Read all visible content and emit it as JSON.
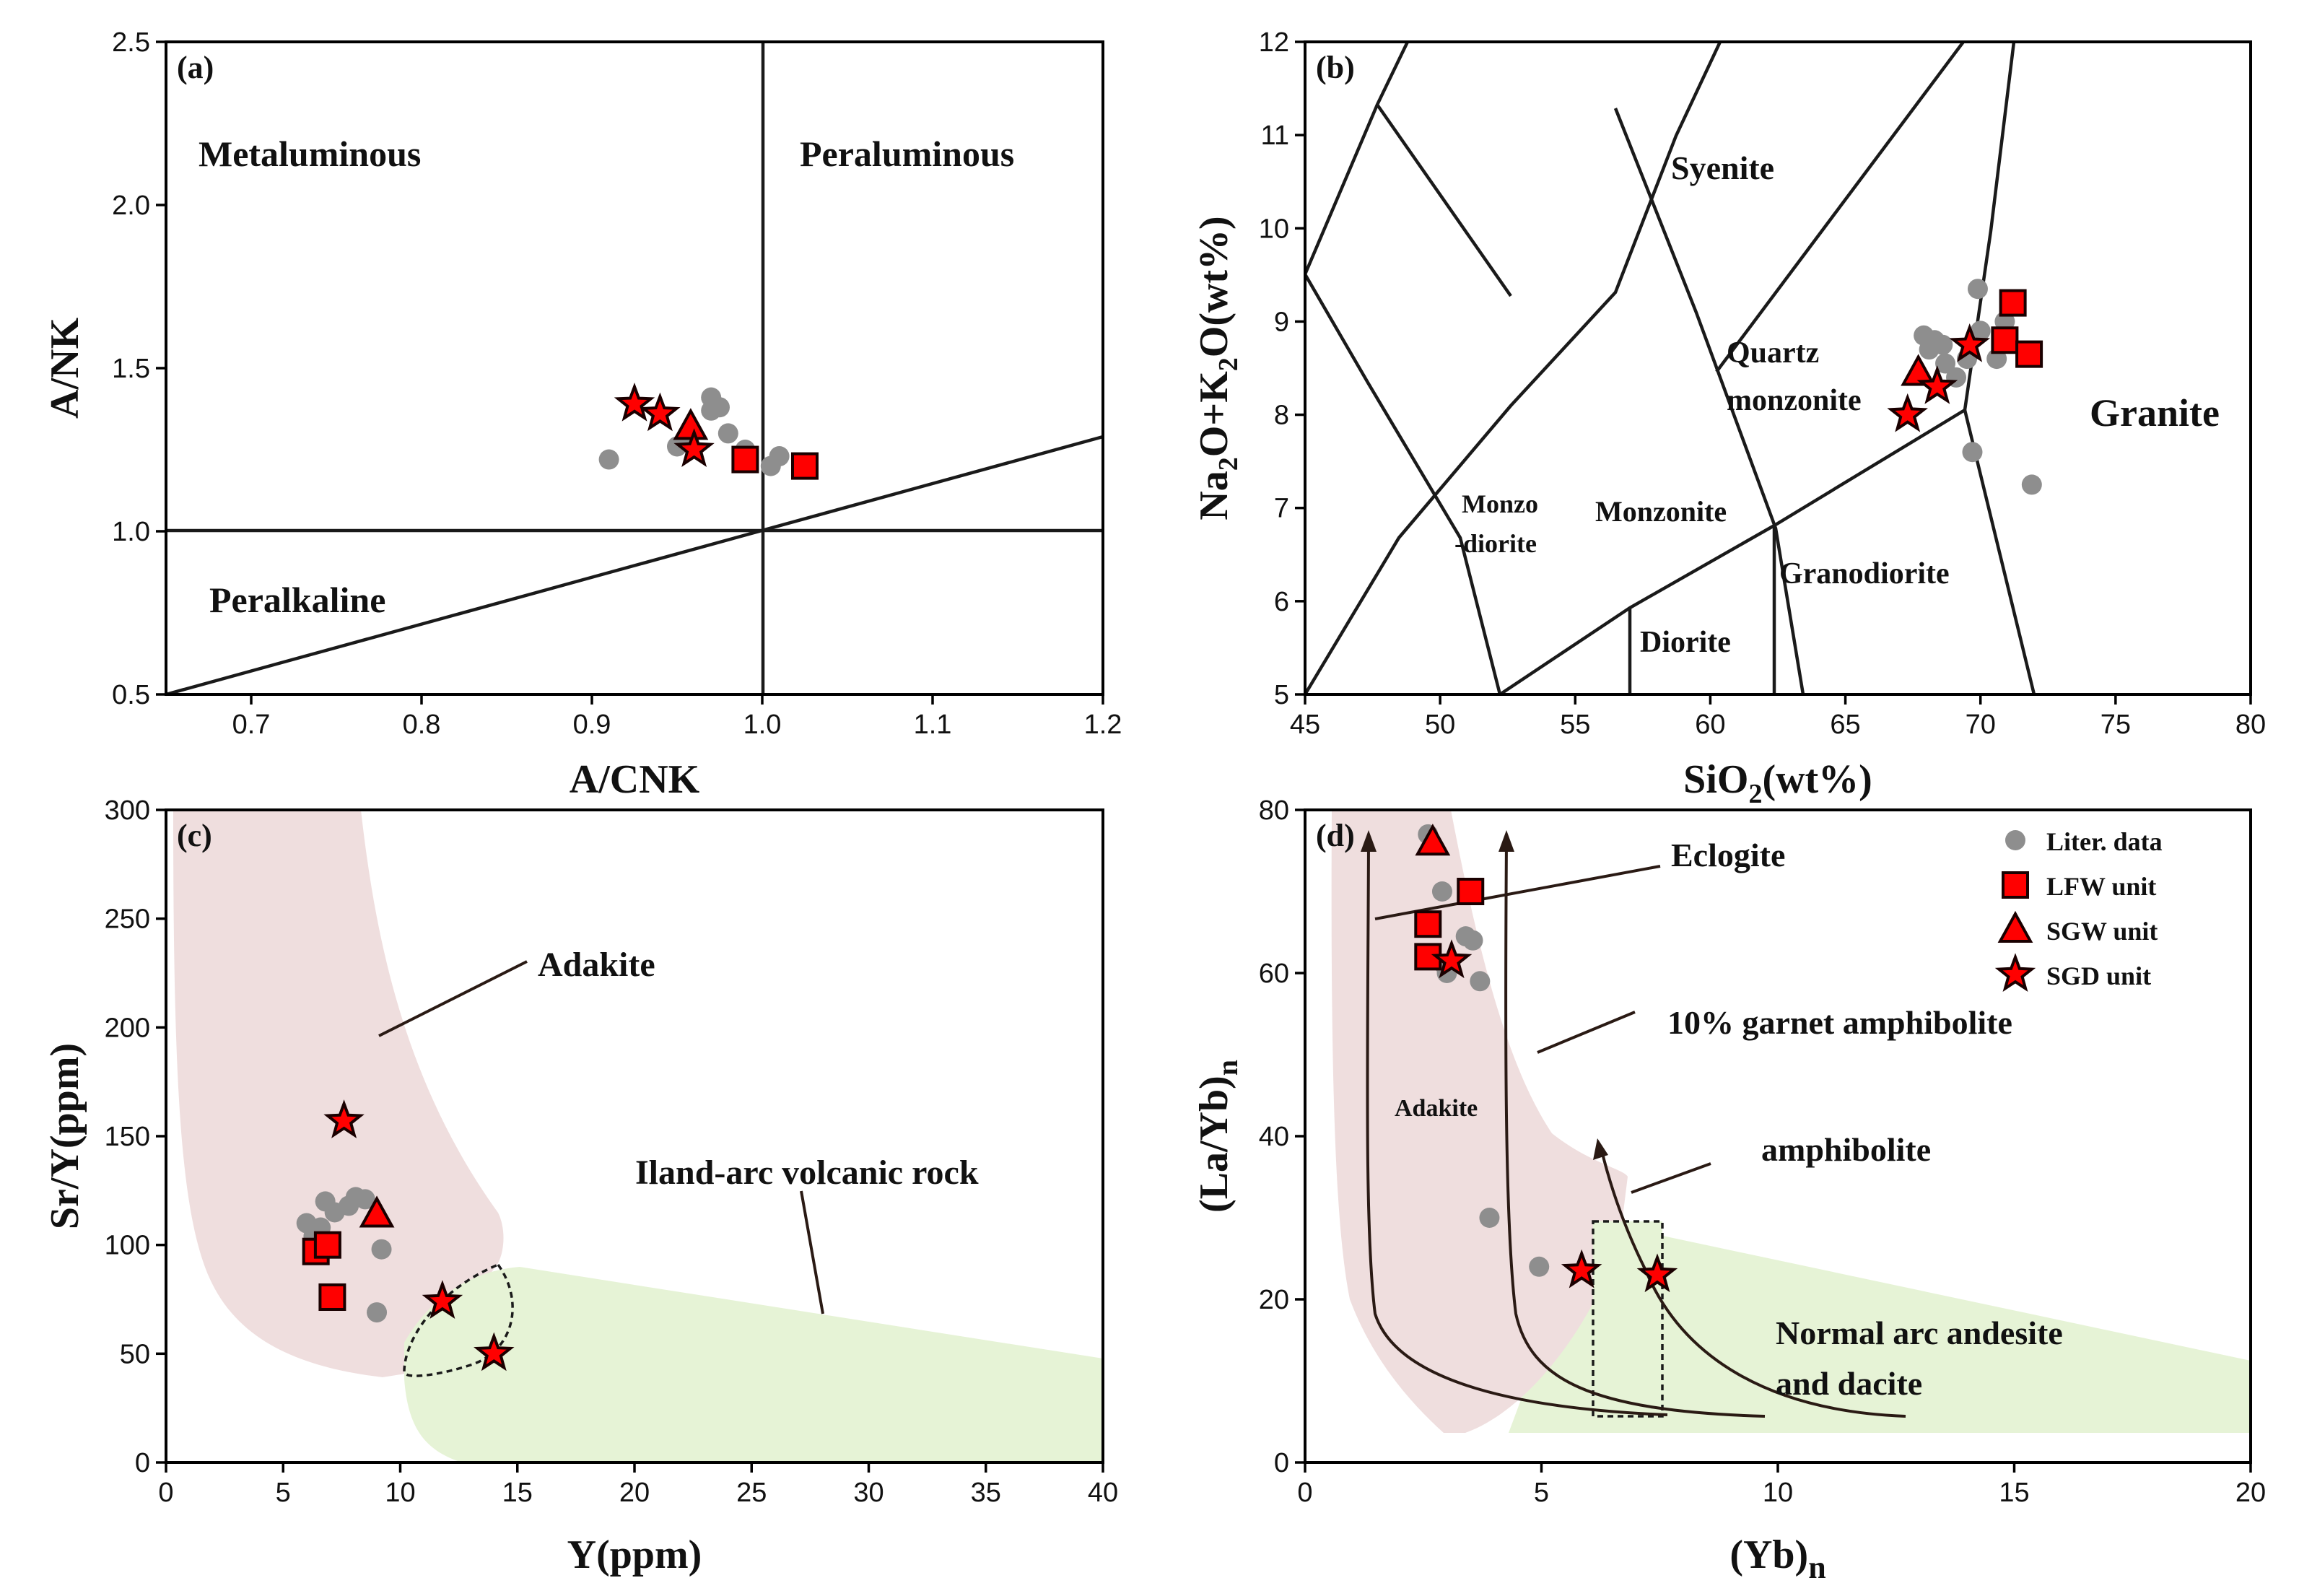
{
  "colors": {
    "adakite_field": "#efdede",
    "arc_field": "#e6f3d6",
    "symbol_fill": "#ff0000",
    "literature": "#8e8e8e"
  },
  "chart_data": [
    {
      "panel": "(a)",
      "type": "scatter",
      "xlabel": "A/CNK",
      "ylabel": "A/NK",
      "xlim": [
        0.65,
        1.2
      ],
      "ylim": [
        0.5,
        2.5
      ],
      "xticks": [
        "0.7",
        "0.8",
        "0.9",
        "1.0",
        "1.1",
        "1.2"
      ],
      "yticks": [
        "0.5",
        "1.0",
        "1.5",
        "2.0",
        "2.5"
      ],
      "regions": [
        "Metaluminous",
        "Peraluminous",
        "Peralkaline"
      ],
      "series": [
        {
          "name": "Liter. data",
          "x": [
            0.91,
            0.95,
            0.955,
            0.97,
            0.97,
            0.975,
            0.98,
            0.99,
            1.005,
            1.01
          ],
          "y": [
            1.22,
            1.26,
            1.28,
            1.37,
            1.41,
            1.38,
            1.3,
            1.25,
            1.2,
            1.23
          ]
        },
        {
          "name": "LFW unit",
          "x": [
            0.99,
            1.025
          ],
          "y": [
            1.22,
            1.2
          ]
        },
        {
          "name": "SGW unit",
          "x": [
            0.958
          ],
          "y": [
            1.32
          ]
        },
        {
          "name": "SGD unit",
          "x": [
            0.925,
            0.94,
            0.96
          ],
          "y": [
            1.39,
            1.36,
            1.25
          ]
        }
      ]
    },
    {
      "panel": "(b)",
      "type": "scatter",
      "xlabel": "SiO2(wt%)",
      "xlabel_main": "SiO",
      "xlabel_sub": "2",
      "xlabel_tail": "(wt%)",
      "ylabel": "Na2O+K2O(wt%)",
      "ylabel_parts": [
        "Na",
        "2",
        "O+K",
        "2",
        "O(wt%)"
      ],
      "xlim": [
        45,
        80
      ],
      "ylim": [
        5,
        12
      ],
      "xticks": [
        "45",
        "50",
        "55",
        "60",
        "65",
        "70",
        "75",
        "80"
      ],
      "yticks": [
        "5",
        "6",
        "7",
        "8",
        "9",
        "10",
        "11",
        "12"
      ],
      "regions": [
        "Syenite",
        "Quartz",
        "monzonite",
        "Granite",
        "Monzo",
        "-diorite",
        "Monzonite",
        "Granodiorite",
        "Diorite"
      ],
      "series": [
        {
          "name": "Liter. data",
          "x": [
            67.9,
            68.1,
            68.3,
            68.6,
            68.7,
            69.1,
            69.5,
            69.9,
            70.0,
            70.6,
            70.9,
            69.7,
            71.9
          ],
          "y": [
            8.85,
            8.7,
            8.8,
            8.75,
            8.55,
            8.4,
            8.6,
            9.35,
            8.9,
            8.6,
            9.0,
            7.6,
            7.25
          ]
        },
        {
          "name": "LFW unit",
          "x": [
            71.2,
            70.9,
            71.8
          ],
          "y": [
            9.2,
            8.8,
            8.65
          ]
        },
        {
          "name": "SGW unit",
          "x": [
            67.7
          ],
          "y": [
            8.45
          ]
        },
        {
          "name": "SGD unit",
          "x": [
            67.3,
            68.4,
            69.6
          ],
          "y": [
            8.0,
            8.3,
            8.75
          ]
        }
      ]
    },
    {
      "panel": "(c)",
      "type": "scatter",
      "xlabel": "Y(ppm)",
      "ylabel": "Sr/Y(ppm)",
      "xlim": [
        0,
        40
      ],
      "ylim": [
        0,
        300
      ],
      "xticks": [
        "0",
        "5",
        "10",
        "15",
        "20",
        "25",
        "30",
        "35",
        "40"
      ],
      "yticks": [
        "0",
        "50",
        "100",
        "150",
        "200",
        "250",
        "300"
      ],
      "annotations": [
        "Adakite",
        "Iland-arc volcanic rock"
      ],
      "series": [
        {
          "name": "Liter. data",
          "x": [
            6.0,
            6.3,
            6.6,
            6.8,
            7.2,
            7.8,
            8.1,
            8.5,
            9.0,
            9.2
          ],
          "y": [
            110,
            104,
            108,
            120,
            115,
            118,
            122,
            121,
            69,
            98
          ]
        },
        {
          "name": "LFW unit",
          "x": [
            6.4,
            6.9,
            7.1
          ],
          "y": [
            97,
            100,
            76
          ]
        },
        {
          "name": "SGW unit",
          "x": [
            9.0
          ],
          "y": [
            114
          ]
        },
        {
          "name": "SGD unit",
          "x": [
            7.6,
            11.8,
            14.0
          ],
          "y": [
            157,
            74,
            50
          ]
        }
      ]
    },
    {
      "panel": "(d)",
      "type": "scatter",
      "xlabel": "(Yb)n",
      "xlabel_main": "(Yb)",
      "xlabel_sub": "n",
      "ylabel": "(La/Yb)n",
      "ylabel_main": "(La/Yb)",
      "ylabel_sub": "n",
      "xlim": [
        0,
        20
      ],
      "ylim": [
        0,
        80
      ],
      "xticks": [
        "0",
        "5",
        "10",
        "15",
        "20"
      ],
      "yticks": [
        "0",
        "20",
        "40",
        "60",
        "80"
      ],
      "annotations": [
        "Eclogite",
        "10% garnet amphibolite",
        "amphibolite",
        "Adakite",
        "Normal arc andesite",
        "and dacite"
      ],
      "legend": [
        "Liter. data",
        "LFW unit",
        "SGW unit",
        "SGD unit"
      ],
      "series": [
        {
          "name": "Liter. data",
          "x": [
            2.6,
            2.9,
            3.0,
            3.4,
            3.55,
            3.7,
            3.9,
            4.95,
            2.95
          ],
          "y": [
            77,
            70,
            60,
            64.5,
            64,
            59,
            30,
            24,
            61
          ]
        },
        {
          "name": "LFW unit",
          "x": [
            2.6,
            2.6,
            3.5
          ],
          "y": [
            66,
            62,
            70
          ]
        },
        {
          "name": "SGW unit",
          "x": [
            2.7
          ],
          "y": [
            76
          ]
        },
        {
          "name": "SGD unit",
          "x": [
            3.1,
            5.85,
            7.45
          ],
          "y": [
            61.5,
            23.5,
            23
          ]
        }
      ]
    }
  ]
}
